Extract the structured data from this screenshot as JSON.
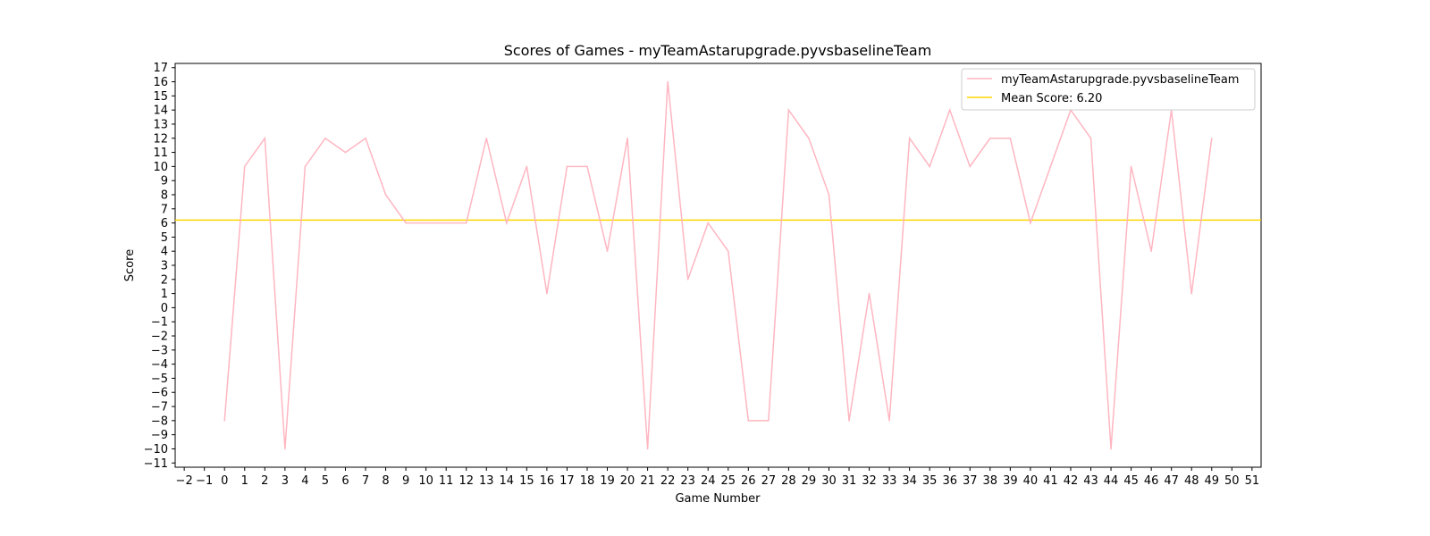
{
  "chart_data": {
    "type": "line",
    "title": "Scores of Games - myTeamAstarupgrade.pyvsbaselineTeam",
    "xlabel": "Game Number",
    "ylabel": "Score",
    "xlim": [
      -2.45,
      51.45
    ],
    "ylim": [
      -11.3,
      17.3
    ],
    "xticks": [
      -2,
      -1,
      0,
      1,
      2,
      3,
      4,
      5,
      6,
      7,
      8,
      9,
      10,
      11,
      12,
      13,
      14,
      15,
      16,
      17,
      18,
      19,
      20,
      21,
      22,
      23,
      24,
      25,
      26,
      27,
      28,
      29,
      30,
      31,
      32,
      33,
      34,
      35,
      36,
      37,
      38,
      39,
      40,
      41,
      42,
      43,
      44,
      45,
      46,
      47,
      48,
      49,
      50,
      51
    ],
    "yticks": [
      -11,
      -10,
      -9,
      -8,
      -7,
      -6,
      -5,
      -4,
      -3,
      -2,
      -1,
      0,
      1,
      2,
      3,
      4,
      5,
      6,
      7,
      8,
      9,
      10,
      11,
      12,
      13,
      14,
      15,
      16,
      17
    ],
    "grid": false,
    "legend_position": "top-right",
    "series": [
      {
        "name": "myTeamAstarupgrade.pyvsbaselineTeam",
        "color": "#ffb6c1",
        "x": [
          0,
          1,
          2,
          3,
          4,
          5,
          6,
          7,
          8,
          9,
          10,
          11,
          12,
          13,
          14,
          15,
          16,
          17,
          18,
          19,
          20,
          21,
          22,
          23,
          24,
          25,
          26,
          27,
          28,
          29,
          30,
          31,
          32,
          33,
          34,
          35,
          36,
          37,
          38,
          39,
          40,
          41,
          42,
          43,
          44,
          45,
          46,
          47,
          48,
          49
        ],
        "y": [
          -8,
          10,
          12,
          -10,
          10,
          12,
          11,
          12,
          8,
          6,
          6,
          6,
          6,
          12,
          6,
          10,
          1,
          10,
          10,
          4,
          12,
          -10,
          16,
          2,
          6,
          4,
          -8,
          -8,
          14,
          12,
          8,
          -8,
          1,
          -8,
          12,
          10,
          14,
          10,
          12,
          12,
          6,
          10,
          14,
          12,
          -10,
          10,
          4,
          14,
          1,
          12
        ]
      }
    ],
    "mean_line": {
      "name": "Mean Score: 6.20",
      "value": 6.2,
      "color": "#ffd700"
    }
  }
}
